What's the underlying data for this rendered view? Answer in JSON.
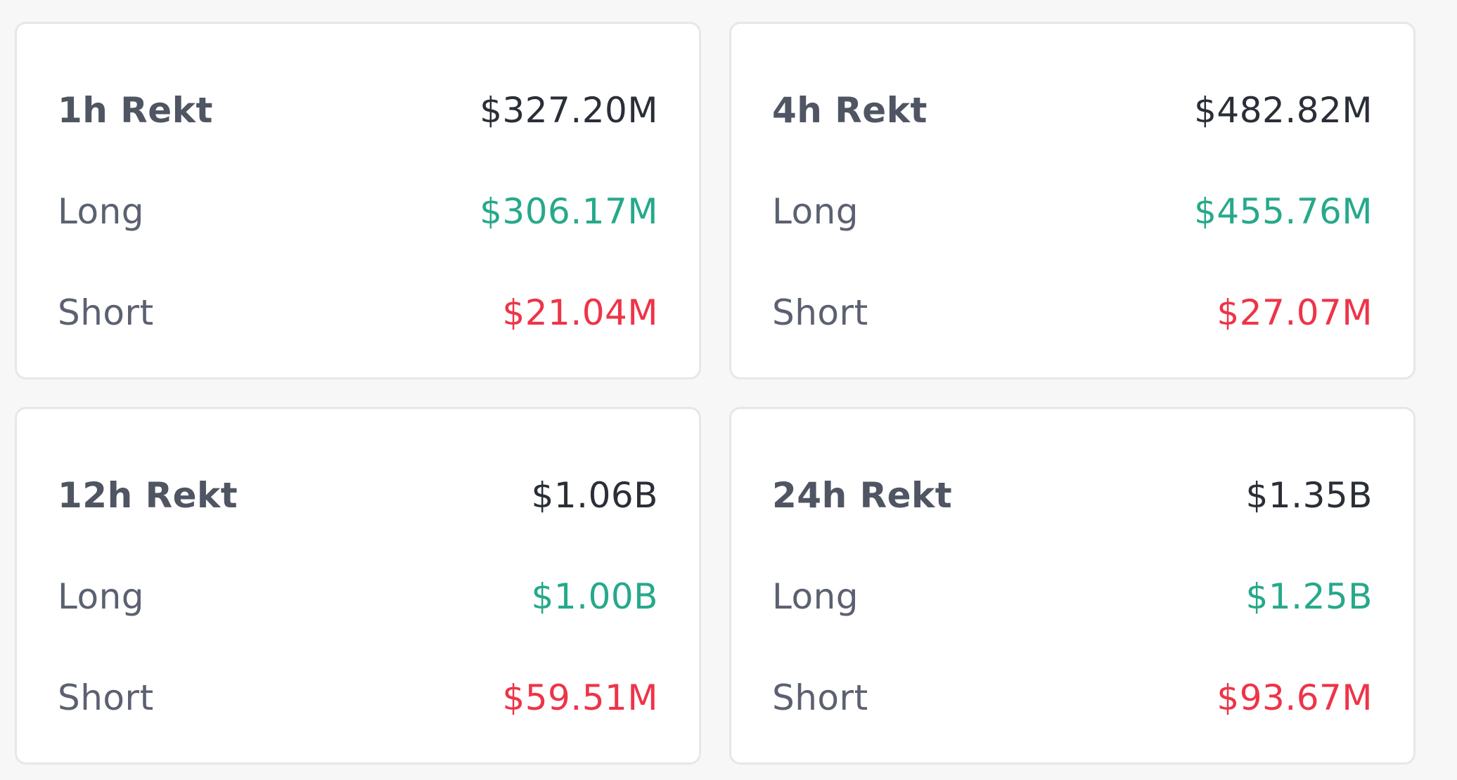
{
  "colors": {
    "total": "#2a2e37",
    "long": "#26a98a",
    "short": "#ee3448",
    "label": "#5b6170",
    "card_border": "#e6e7ea",
    "background": "#f7f7f8"
  },
  "cards": [
    {
      "title": "1h Rekt",
      "total": "$327.20M",
      "long_label": "Long",
      "long": "$306.17M",
      "short_label": "Short",
      "short": "$21.04M"
    },
    {
      "title": "4h Rekt",
      "total": "$482.82M",
      "long_label": "Long",
      "long": "$455.76M",
      "short_label": "Short",
      "short": "$27.07M"
    },
    {
      "title": "12h Rekt",
      "total": "$1.06B",
      "long_label": "Long",
      "long": "$1.00B",
      "short_label": "Short",
      "short": "$59.51M"
    },
    {
      "title": "24h Rekt",
      "total": "$1.35B",
      "long_label": "Long",
      "long": "$1.25B",
      "short_label": "Short",
      "short": "$93.67M"
    }
  ]
}
